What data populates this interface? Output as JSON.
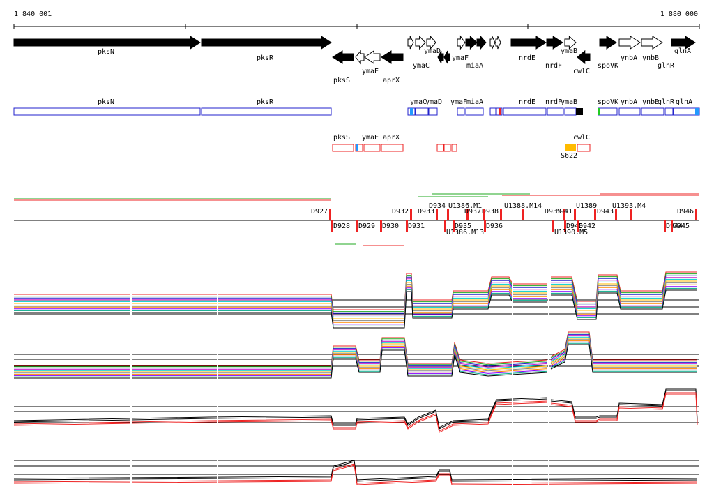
{
  "ruler": {
    "start": "1 840 001",
    "end": "1 880 000"
  },
  "genes": [
    "pksN",
    "pksR",
    "pksS",
    "ymaE",
    "aprX",
    "ymaD",
    "ymaC",
    "ymaF",
    "miaA",
    "nrdE",
    "nrdF",
    "ymaB",
    "cwlC",
    "spoVK",
    "ynbA",
    "ynbB",
    "glnR",
    "glnA"
  ],
  "features_blue": [
    "pksN",
    "pksR",
    "ymaC",
    "ymaD",
    "ymaF",
    "miaA",
    "nrdE",
    "nrdF",
    "ymaB",
    "spoVK",
    "ynbA",
    "ynbB",
    "glnR",
    "glnA"
  ],
  "features_red": [
    "pksS",
    "ymaE",
    "aprX",
    "cwlC"
  ],
  "promoter": "S622",
  "segments_upper": [
    "D927",
    "D932",
    "D933",
    "D934",
    "U1386.M1",
    "D937",
    "D938",
    "U1388.M14",
    "D939",
    "D941",
    "U1389",
    "U1393.M4",
    "D943",
    "D946"
  ],
  "segments_lower": [
    "D928",
    "D929",
    "D930",
    "D931",
    "D935",
    "U1386.M13",
    "D936",
    "D940",
    "D942",
    "U1390.M5",
    "D944",
    "D945"
  ]
}
